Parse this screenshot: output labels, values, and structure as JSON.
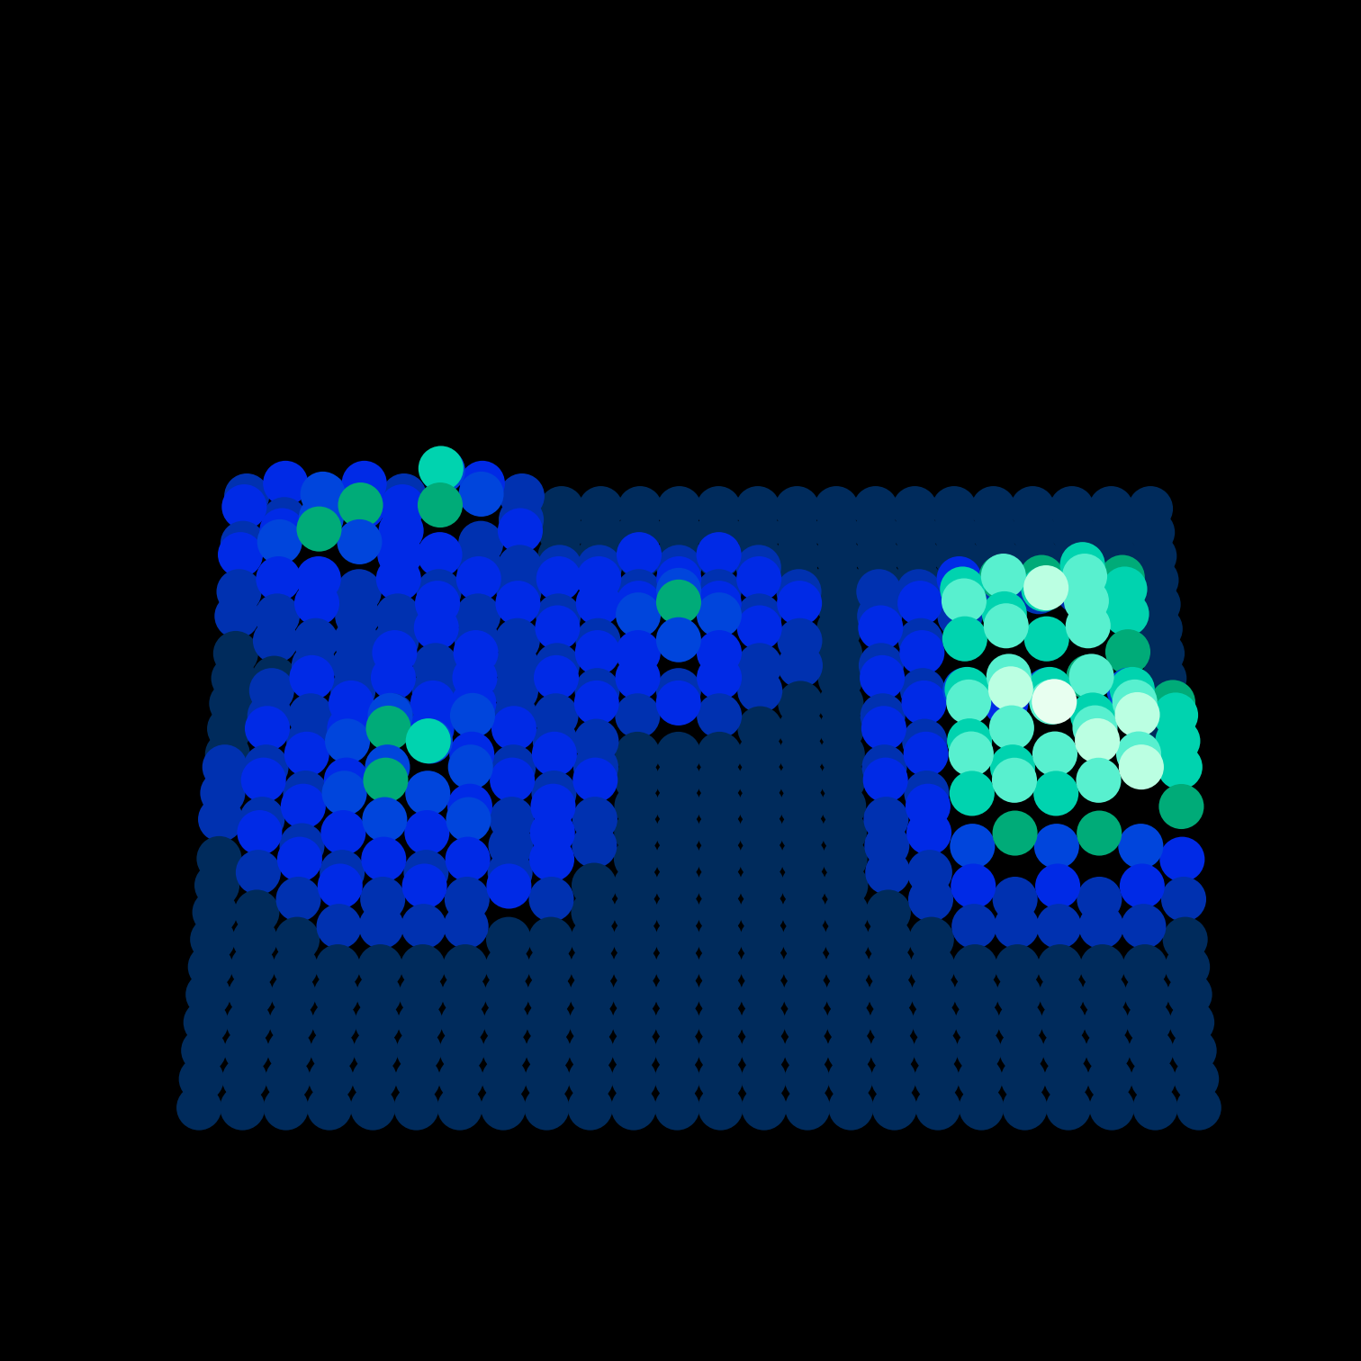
{
  "chart_data": {
    "type": "scatter3d",
    "marker": "o",
    "tick_labels": false,
    "grid": false,
    "xlim": [
      0,
      23
    ],
    "ylim": [
      0,
      23
    ],
    "zlim": [
      0,
      20
    ],
    "z": [
      [
        1,
        2,
        1,
        2,
        1,
        3,
        2,
        1,
        0,
        0,
        0,
        0,
        0,
        0,
        0,
        0,
        0,
        0,
        0,
        0,
        0,
        0,
        0,
        0
      ],
      [
        2,
        1,
        3,
        2,
        2,
        5,
        3,
        1,
        0,
        0,
        0,
        0,
        0,
        0,
        0,
        0,
        0,
        0,
        0,
        0,
        0,
        0,
        0,
        0
      ],
      [
        1,
        2,
        3,
        4,
        2,
        4,
        1,
        2,
        0,
        0,
        0,
        0,
        0,
        0,
        0,
        0,
        0,
        0,
        0,
        0,
        0,
        0,
        0,
        0
      ],
      [
        2,
        3,
        4,
        3,
        2,
        2,
        1,
        1,
        1,
        1,
        2,
        1,
        2,
        1,
        0,
        0,
        0,
        0,
        0,
        0,
        0,
        0,
        0,
        0
      ],
      [
        1,
        2,
        2,
        1,
        2,
        1,
        2,
        1,
        2,
        2,
        1,
        2,
        1,
        2,
        1,
        0,
        1,
        1,
        2,
        1,
        1,
        1,
        0,
        0
      ],
      [
        1,
        1,
        2,
        1,
        1,
        2,
        1,
        2,
        1,
        2,
        2,
        3,
        2,
        1,
        2,
        0,
        1,
        2,
        1,
        4,
        4,
        5,
        4,
        0
      ],
      [
        0,
        1,
        1,
        1,
        1,
        2,
        1,
        1,
        2,
        1,
        3,
        4,
        3,
        2,
        1,
        0,
        2,
        1,
        5,
        6,
        5,
        6,
        5,
        0
      ],
      [
        0,
        0,
        1,
        1,
        2,
        1,
        2,
        1,
        1,
        2,
        2,
        3,
        2,
        1,
        1,
        0,
        1,
        2,
        6,
        5,
        7,
        6,
        5,
        0
      ],
      [
        0,
        1,
        2,
        1,
        2,
        1,
        2,
        1,
        2,
        1,
        2,
        1,
        2,
        1,
        0,
        0,
        2,
        1,
        5,
        6,
        5,
        6,
        4,
        0
      ],
      [
        0,
        1,
        1,
        2,
        1,
        2,
        2,
        1,
        1,
        2,
        1,
        2,
        1,
        0,
        0,
        0,
        1,
        2,
        3,
        2,
        3,
        4,
        3,
        0
      ],
      [
        0,
        2,
        1,
        2,
        3,
        2,
        3,
        2,
        1,
        1,
        0,
        0,
        0,
        0,
        0,
        0,
        2,
        1,
        5,
        6,
        5,
        6,
        5,
        4
      ],
      [
        1,
        1,
        2,
        3,
        4,
        3,
        2,
        1,
        2,
        1,
        0,
        0,
        0,
        0,
        0,
        0,
        1,
        2,
        6,
        7,
        6,
        5,
        6,
        5
      ],
      [
        1,
        2,
        1,
        2,
        3,
        5,
        3,
        2,
        1,
        2,
        0,
        0,
        0,
        0,
        0,
        0,
        2,
        1,
        5,
        6,
        8,
        6,
        7,
        5
      ],
      [
        1,
        1,
        2,
        3,
        4,
        3,
        2,
        1,
        2,
        1,
        0,
        0,
        0,
        0,
        0,
        0,
        1,
        2,
        6,
        5,
        6,
        7,
        6,
        5
      ],
      [
        0,
        2,
        1,
        2,
        3,
        2,
        3,
        1,
        2,
        1,
        0,
        0,
        0,
        0,
        0,
        0,
        1,
        2,
        5,
        6,
        5,
        6,
        7,
        4
      ],
      [
        0,
        1,
        2,
        1,
        2,
        1,
        2,
        1,
        2,
        0,
        0,
        0,
        0,
        0,
        0,
        0,
        1,
        1,
        3,
        4,
        3,
        4,
        3,
        2
      ],
      [
        0,
        0,
        1,
        2,
        1,
        2,
        1,
        2,
        1,
        0,
        0,
        0,
        0,
        0,
        0,
        0,
        0,
        1,
        2,
        1,
        2,
        1,
        2,
        1
      ],
      [
        0,
        0,
        0,
        1,
        1,
        1,
        1,
        0,
        0,
        0,
        0,
        0,
        0,
        0,
        0,
        0,
        0,
        0,
        1,
        1,
        1,
        1,
        1,
        0
      ],
      [
        0,
        0,
        0,
        0,
        0,
        0,
        0,
        0,
        0,
        0,
        0,
        0,
        0,
        0,
        0,
        0,
        0,
        0,
        0,
        0,
        0,
        0,
        0,
        0
      ],
      [
        0,
        0,
        0,
        0,
        0,
        0,
        0,
        0,
        0,
        0,
        0,
        0,
        0,
        0,
        0,
        0,
        0,
        0,
        0,
        0,
        0,
        0,
        0,
        0
      ],
      [
        0,
        0,
        0,
        0,
        0,
        0,
        0,
        0,
        0,
        0,
        0,
        0,
        0,
        0,
        0,
        0,
        0,
        0,
        0,
        0,
        0,
        0,
        0,
        0
      ],
      [
        0,
        0,
        0,
        0,
        0,
        0,
        0,
        0,
        0,
        0,
        0,
        0,
        0,
        0,
        0,
        0,
        0,
        0,
        0,
        0,
        0,
        0,
        0,
        0
      ],
      [
        0,
        0,
        0,
        0,
        0,
        0,
        0,
        0,
        0,
        0,
        0,
        0,
        0,
        0,
        0,
        0,
        0,
        0,
        0,
        0,
        0,
        0,
        0,
        0
      ],
      [
        0,
        0,
        0,
        0,
        0,
        0,
        0,
        0,
        0,
        0,
        0,
        0,
        0,
        0,
        0,
        0,
        0,
        0,
        0,
        0,
        0,
        0,
        0,
        0
      ]
    ]
  }
}
